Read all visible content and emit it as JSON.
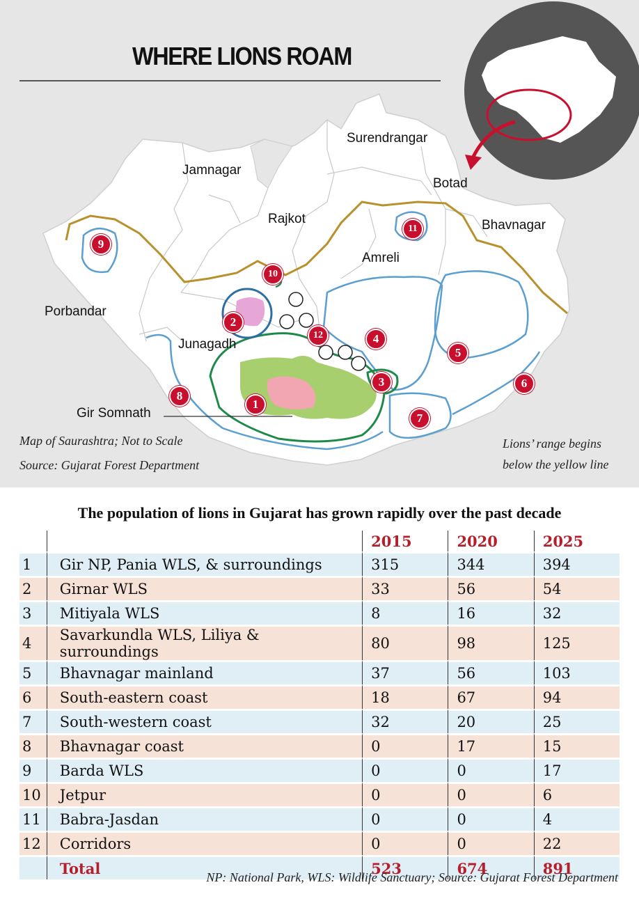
{
  "map": {
    "headline": "WHERE LIONS ROAM",
    "districts": {
      "surendranagar": "Surendrangar",
      "jamnagar": "Jamnagar",
      "botad": "Botad",
      "rajkot": "Rajkot",
      "bhavnagar": "Bhavnagar",
      "amreli": "Amreli",
      "porbandar": "Porbandar",
      "junagadh": "Junagadh",
      "gir_somnath": "Gir Somnath"
    },
    "markers": [
      "1",
      "2",
      "3",
      "4",
      "5",
      "6",
      "7",
      "8",
      "9",
      "10",
      "11",
      "12"
    ],
    "notes": {
      "scale": "Map of Saurashtra; Not to Scale",
      "source": "Source: Gujarat Forest Department",
      "range_line1": "Lions’ range begins",
      "range_line2": "below the yellow line"
    },
    "colors": {
      "range_line": "#b9912c",
      "region_outline": "#5a9fd0",
      "gir_boundary": "#1e8a4a",
      "gir_fill": "#a8cf6e",
      "sanctuary_fill": "#f2a6b2",
      "marker": "#c8102e",
      "inset_bg": "#555555"
    }
  },
  "table": {
    "title": "The population of lions in Gujarat has grown rapidly over the past decade",
    "headers": [
      "2015",
      "2020",
      "2025"
    ],
    "rows": [
      {
        "n": "1",
        "name": "Gir NP, Pania WLS, & surroundings",
        "y2015": "315",
        "y2020": "344",
        "y2025": "394"
      },
      {
        "n": "2",
        "name": "Girnar WLS",
        "y2015": "33",
        "y2020": "56",
        "y2025": "54"
      },
      {
        "n": "3",
        "name": "Mitiyala WLS",
        "y2015": "8",
        "y2020": "16",
        "y2025": "32"
      },
      {
        "n": "4",
        "name": "Savarkundla WLS, Liliya & surroundings",
        "y2015": "80",
        "y2020": "98",
        "y2025": "125"
      },
      {
        "n": "5",
        "name": "Bhavnagar mainland",
        "y2015": "37",
        "y2020": "56",
        "y2025": "103"
      },
      {
        "n": "6",
        "name": "South-eastern coast",
        "y2015": "18",
        "y2020": "67",
        "y2025": "94"
      },
      {
        "n": "7",
        "name": "South-western coast",
        "y2015": "32",
        "y2020": "20",
        "y2025": "25"
      },
      {
        "n": "8",
        "name": "Bhavnagar coast",
        "y2015": "0",
        "y2020": "17",
        "y2025": "15"
      },
      {
        "n": "9",
        "name": "Barda WLS",
        "y2015": "0",
        "y2020": "0",
        "y2025": "17"
      },
      {
        "n": "10",
        "name": "Jetpur",
        "y2015": "0",
        "y2020": "0",
        "y2025": "6"
      },
      {
        "n": "11",
        "name": "Babra-Jasdan",
        "y2015": "0",
        "y2020": "0",
        "y2025": "4"
      },
      {
        "n": "12",
        "name": "Corridors",
        "y2015": "0",
        "y2020": "0",
        "y2025": "22"
      }
    ],
    "total": {
      "label": "Total",
      "y2015": "523",
      "y2020": "674",
      "y2025": "891"
    },
    "footnote": "NP: National Park, WLS: Wildlife Sanctuary;  Source: Gujarat Forest Department"
  }
}
